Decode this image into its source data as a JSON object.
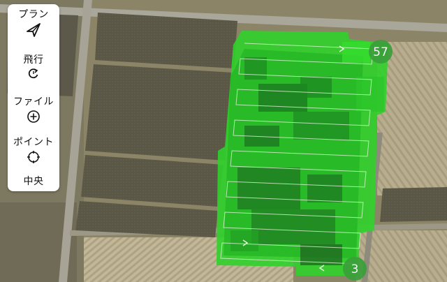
{
  "toolbar": {
    "plan": "プラン",
    "flight": "飛行",
    "file": "ファイル",
    "point": "ポイント",
    "center": "中央"
  },
  "icons": {
    "plan": "paper-plane-icon",
    "flight": "rotate-icon",
    "file": "plus-circle-icon",
    "point": "crosshair-icon"
  },
  "waypoints": {
    "end_label": "57",
    "start_label": "3"
  },
  "colors": {
    "coverage_bright": "#2fd12a",
    "coverage_dark": "#1f6a22",
    "marker": "#3a9e3a",
    "path": "#e8f5e0"
  }
}
